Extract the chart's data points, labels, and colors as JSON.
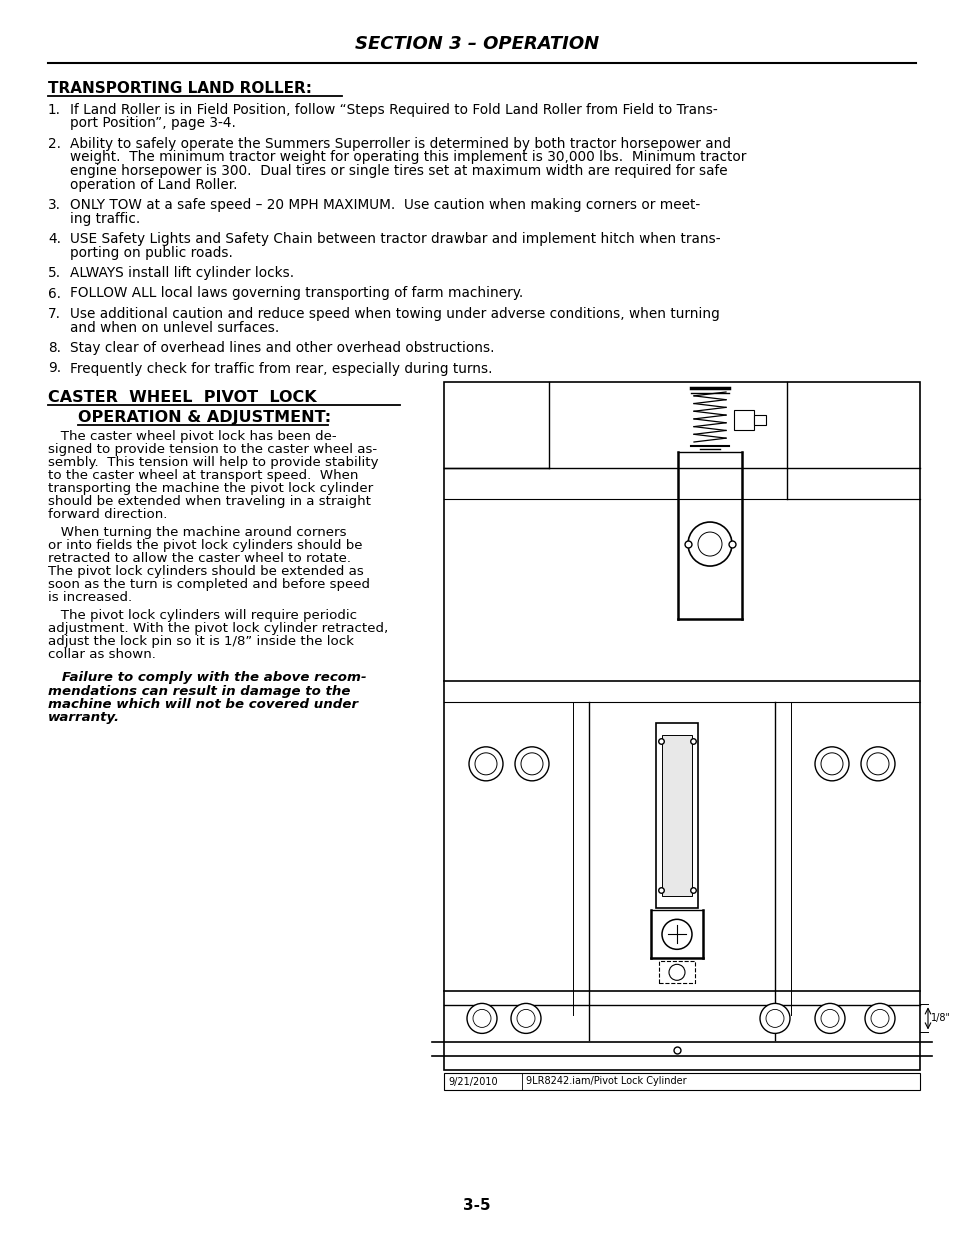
{
  "title": "SECTION 3 – OPERATION",
  "section_heading": "TRANSPORTING LAND ROLLER:",
  "items": [
    "If Land Roller is in Field Position, follow “Steps Required to Fold Land Roller from Field to Trans-\nport Position”, page 3-4.",
    "Ability to safely operate the Summers Superroller is determined by both tractor horsepower and\nweight.  The minimum tractor weight for operating this implement is 30,000 lbs.  Minimum tractor\nengine horsepower is 300.  Dual tires or single tires set at maximum width are required for safe\noperation of Land Roller.",
    "ONLY TOW at a safe speed – 20 MPH MAXIMUM.  Use caution when making corners or meet-\ning traffic.",
    "USE Safety Lights and Safety Chain between tractor drawbar and implement hitch when trans-\nporting on public roads.",
    "ALWAYS install lift cylinder locks.",
    "FOLLOW ALL local laws governing transporting of farm machinery.",
    "Use additional caution and reduce speed when towing under adverse conditions, when turning\nand when on unlevel surfaces.",
    "Stay clear of overhead lines and other overhead obstructions.",
    "Frequently check for traffic from rear, especially during turns."
  ],
  "caster_heading_line1": "CASTER  WHEEL  PIVOT  LOCK",
  "caster_heading_line2": "OPERATION & ADJUSTMENT:",
  "caster_body": [
    "   The caster wheel pivot lock has been de-\nsigned to provide tension to the caster wheel as-\nsembly.  This tension will help to provide stability\nto the caster wheel at transport speed.  When\ntransporting the machine the pivot lock cylinder\nshould be extended when traveling in a straight\nforward direction.",
    "   When turning the machine around corners\nor into fields the pivot lock cylinders should be\nretracted to allow the caster wheel to rotate.\nThe pivot lock cylinders should be extended as\nsoon as the turn is completed and before speed\nis increased.",
    "   The pivot lock cylinders will require periodic\nadjustment. With the pivot lock cylinder retracted,\nadjust the lock pin so it is 1/8” inside the lock\ncollar as shown."
  ],
  "warning_text": "   Failure to comply with the above recom-\nmendations can result in damage to the\nmachine which will not be covered under\nwarranty.",
  "page_number": "3-5",
  "image_caption_left": "9/21/2010",
  "image_caption_right": "9LR8242.iam/Pivot Lock Cylinder",
  "bg_color": "#ffffff"
}
